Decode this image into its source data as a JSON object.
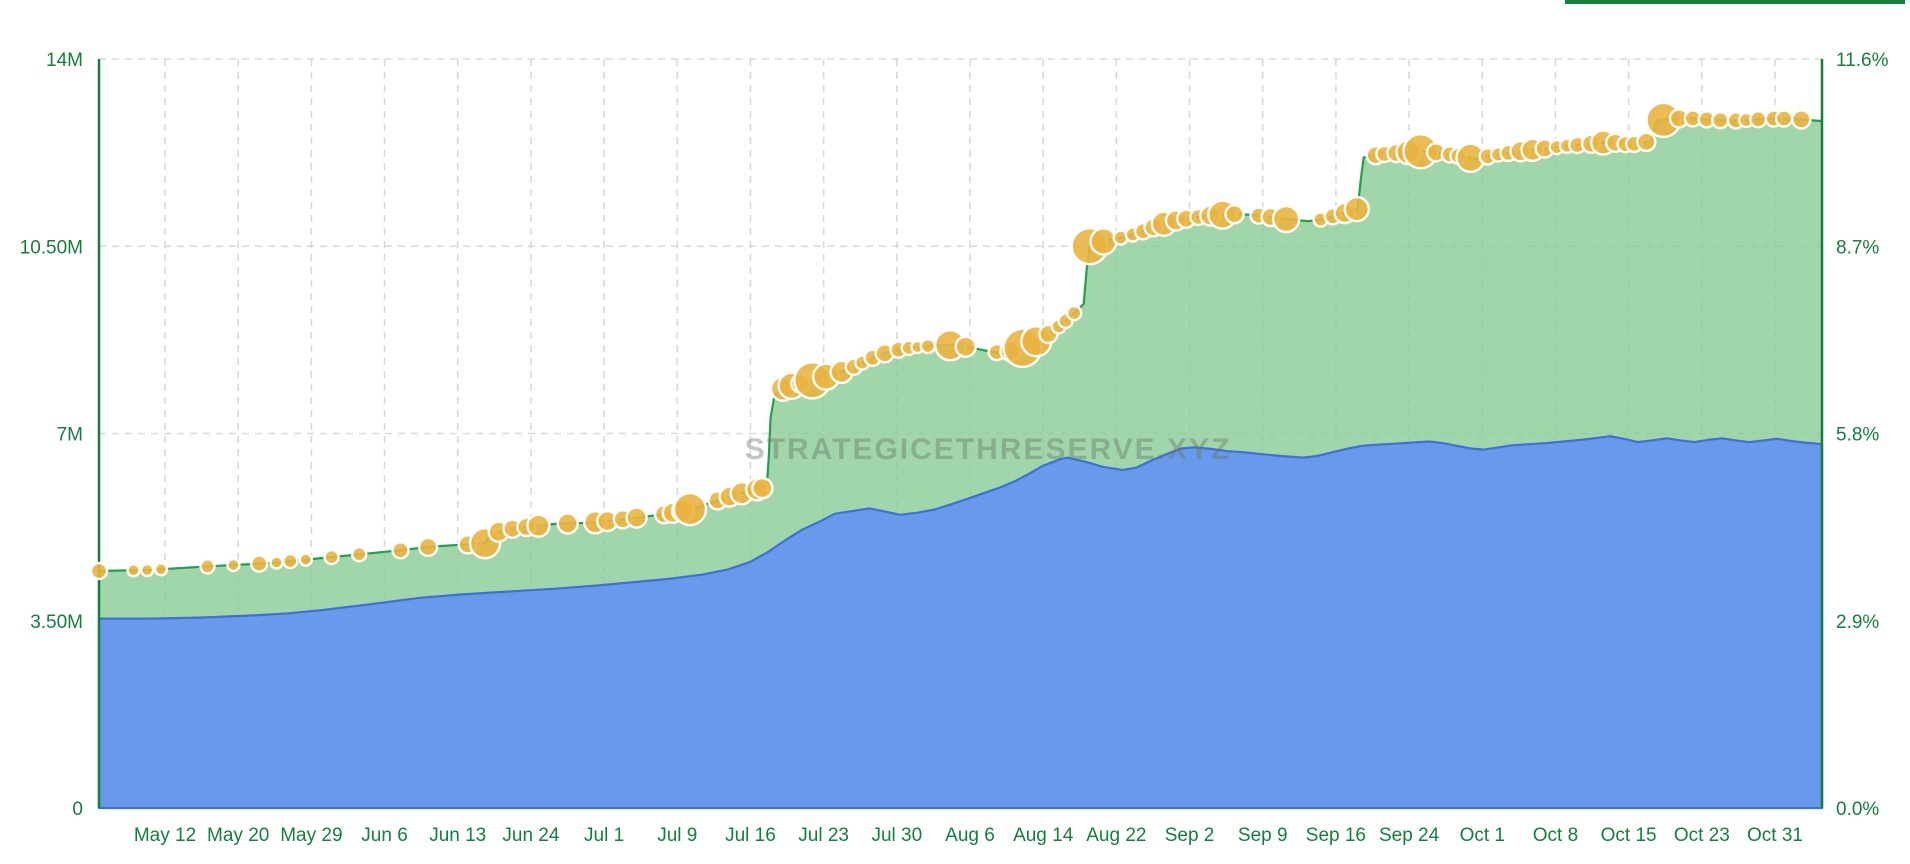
{
  "chart_data": {
    "type": "area",
    "title": "",
    "watermark": "STRATEGICETHRESERVE.XYZ",
    "legend": "none",
    "grid": true,
    "y_left": {
      "unit": "M ETH",
      "max": 14,
      "values": [
        0,
        3.5,
        7,
        10.5,
        14
      ],
      "ticks": [
        "0",
        "3.50M",
        "7M",
        "10.50M",
        "14M"
      ]
    },
    "y_right": {
      "unit": "% of supply",
      "max": 11.6,
      "values": [
        0,
        2.9,
        5.8,
        8.7,
        11.6
      ],
      "ticks": [
        "0.0%",
        "2.9%",
        "5.8%",
        "8.7%",
        "11.6%"
      ]
    },
    "x_labels": [
      "May 12",
      "May 20",
      "May 29",
      "Jun 6",
      "Jun 13",
      "Jun 24",
      "Jul 1",
      "Jul 9",
      "Jul 16",
      "Jul 23",
      "Jul 30",
      "Aug 6",
      "Aug 14",
      "Aug 22",
      "Sep 2",
      "Sep 9",
      "Sep 16",
      "Sep 24",
      "Oct 1",
      "Oct 8",
      "Oct 15",
      "Oct 23",
      "Oct 31"
    ],
    "series": [
      {
        "name": "total-eth-reserve-green",
        "axis": "left",
        "points": [
          [
            0.0,
            4.43
          ],
          [
            0.03,
            4.45
          ],
          [
            0.065,
            4.52
          ],
          [
            0.1,
            4.58
          ],
          [
            0.135,
            4.69
          ],
          [
            0.16,
            4.77
          ],
          [
            0.176,
            4.82
          ],
          [
            0.191,
            4.88
          ],
          [
            0.215,
            4.93
          ],
          [
            0.224,
            4.95
          ],
          [
            0.227,
            5.1
          ],
          [
            0.235,
            5.2
          ],
          [
            0.25,
            5.26
          ],
          [
            0.265,
            5.31
          ],
          [
            0.285,
            5.33
          ],
          [
            0.3,
            5.38
          ],
          [
            0.315,
            5.44
          ],
          [
            0.33,
            5.5
          ],
          [
            0.34,
            5.56
          ],
          [
            0.35,
            5.65
          ],
          [
            0.36,
            5.76
          ],
          [
            0.37,
            5.86
          ],
          [
            0.38,
            5.94
          ],
          [
            0.3875,
            6.0
          ],
          [
            0.3886,
            6.5
          ],
          [
            0.3898,
            7.3
          ],
          [
            0.3921,
            7.72
          ],
          [
            0.398,
            7.86
          ],
          [
            0.408,
            7.94
          ],
          [
            0.417,
            8.02
          ],
          [
            0.426,
            8.09
          ],
          [
            0.435,
            8.2
          ],
          [
            0.444,
            8.34
          ],
          [
            0.452,
            8.46
          ],
          [
            0.461,
            8.55
          ],
          [
            0.47,
            8.6
          ],
          [
            0.479,
            8.63
          ],
          [
            0.489,
            8.65
          ],
          [
            0.498,
            8.65
          ],
          [
            0.507,
            8.6
          ],
          [
            0.516,
            8.54
          ],
          [
            0.524,
            8.51
          ],
          [
            0.531,
            8.55
          ],
          [
            0.538,
            8.62
          ],
          [
            0.545,
            8.74
          ],
          [
            0.552,
            8.88
          ],
          [
            0.559,
            9.05
          ],
          [
            0.566,
            9.25
          ],
          [
            0.5715,
            9.42
          ],
          [
            0.5732,
            10.05
          ],
          [
            0.5749,
            10.5
          ],
          [
            0.58,
            10.57
          ],
          [
            0.589,
            10.63
          ],
          [
            0.598,
            10.7
          ],
          [
            0.606,
            10.78
          ],
          [
            0.614,
            10.88
          ],
          [
            0.623,
            10.97
          ],
          [
            0.632,
            11.02
          ],
          [
            0.641,
            11.06
          ],
          [
            0.65,
            11.09
          ],
          [
            0.658,
            11.1
          ],
          [
            0.668,
            11.09
          ],
          [
            0.677,
            11.06
          ],
          [
            0.686,
            11.02
          ],
          [
            0.694,
            10.99
          ],
          [
            0.702,
            10.97
          ],
          [
            0.709,
            11.0
          ],
          [
            0.716,
            11.06
          ],
          [
            0.723,
            11.12
          ],
          [
            0.7305,
            11.2
          ],
          [
            0.7323,
            11.75
          ],
          [
            0.734,
            12.16
          ],
          [
            0.744,
            12.22
          ],
          [
            0.752,
            12.24
          ],
          [
            0.76,
            12.26
          ],
          [
            0.768,
            12.28
          ],
          [
            0.777,
            12.25
          ],
          [
            0.785,
            12.21
          ],
          [
            0.792,
            12.17
          ],
          [
            0.799,
            12.14
          ],
          [
            0.806,
            12.18
          ],
          [
            0.813,
            12.22
          ],
          [
            0.821,
            12.26
          ],
          [
            0.829,
            12.29
          ],
          [
            0.837,
            12.32
          ],
          [
            0.845,
            12.35
          ],
          [
            0.853,
            12.38
          ],
          [
            0.861,
            12.4
          ],
          [
            0.87,
            12.43
          ],
          [
            0.877,
            12.45
          ],
          [
            0.883,
            12.42
          ],
          [
            0.888,
            12.4
          ],
          [
            0.895,
            12.43
          ],
          [
            0.901,
            12.47
          ],
          [
            0.9028,
            12.72
          ],
          [
            0.9045,
            12.85
          ],
          [
            0.913,
            12.88
          ],
          [
            0.921,
            12.9
          ],
          [
            0.929,
            12.88
          ],
          [
            0.938,
            12.86
          ],
          [
            0.948,
            12.85
          ],
          [
            0.957,
            12.86
          ],
          [
            0.966,
            12.88
          ],
          [
            0.976,
            12.89
          ],
          [
            0.985,
            12.88
          ],
          [
            0.992,
            12.86
          ],
          [
            1.0,
            12.84
          ]
        ]
      },
      {
        "name": "secondary-holdings-blue",
        "axis": "left",
        "points": [
          [
            0.0,
            3.54
          ],
          [
            0.03,
            3.54
          ],
          [
            0.06,
            3.56
          ],
          [
            0.09,
            3.6
          ],
          [
            0.11,
            3.64
          ],
          [
            0.13,
            3.7
          ],
          [
            0.15,
            3.78
          ],
          [
            0.17,
            3.86
          ],
          [
            0.187,
            3.93
          ],
          [
            0.21,
            3.99
          ],
          [
            0.24,
            4.05
          ],
          [
            0.265,
            4.1
          ],
          [
            0.29,
            4.16
          ],
          [
            0.31,
            4.22
          ],
          [
            0.33,
            4.28
          ],
          [
            0.35,
            4.36
          ],
          [
            0.365,
            4.46
          ],
          [
            0.378,
            4.6
          ],
          [
            0.388,
            4.78
          ],
          [
            0.398,
            5.0
          ],
          [
            0.408,
            5.2
          ],
          [
            0.418,
            5.35
          ],
          [
            0.427,
            5.5
          ],
          [
            0.437,
            5.55
          ],
          [
            0.447,
            5.6
          ],
          [
            0.455,
            5.55
          ],
          [
            0.465,
            5.48
          ],
          [
            0.475,
            5.52
          ],
          [
            0.485,
            5.58
          ],
          [
            0.495,
            5.68
          ],
          [
            0.504,
            5.78
          ],
          [
            0.513,
            5.88
          ],
          [
            0.522,
            5.98
          ],
          [
            0.531,
            6.1
          ],
          [
            0.54,
            6.25
          ],
          [
            0.548,
            6.4
          ],
          [
            0.558,
            6.52
          ],
          [
            0.562,
            6.55
          ],
          [
            0.573,
            6.47
          ],
          [
            0.582,
            6.38
          ],
          [
            0.594,
            6.32
          ],
          [
            0.602,
            6.36
          ],
          [
            0.611,
            6.5
          ],
          [
            0.62,
            6.62
          ],
          [
            0.628,
            6.72
          ],
          [
            0.636,
            6.74
          ],
          [
            0.646,
            6.71
          ],
          [
            0.655,
            6.67
          ],
          [
            0.664,
            6.65
          ],
          [
            0.673,
            6.62
          ],
          [
            0.682,
            6.59
          ],
          [
            0.69,
            6.57
          ],
          [
            0.699,
            6.55
          ],
          [
            0.707,
            6.58
          ],
          [
            0.716,
            6.65
          ],
          [
            0.725,
            6.72
          ],
          [
            0.733,
            6.77
          ],
          [
            0.742,
            6.79
          ],
          [
            0.752,
            6.81
          ],
          [
            0.762,
            6.83
          ],
          [
            0.772,
            6.85
          ],
          [
            0.78,
            6.82
          ],
          [
            0.788,
            6.77
          ],
          [
            0.796,
            6.72
          ],
          [
            0.804,
            6.7
          ],
          [
            0.812,
            6.74
          ],
          [
            0.82,
            6.78
          ],
          [
            0.83,
            6.8
          ],
          [
            0.84,
            6.82
          ],
          [
            0.85,
            6.85
          ],
          [
            0.86,
            6.88
          ],
          [
            0.87,
            6.92
          ],
          [
            0.877,
            6.95
          ],
          [
            0.885,
            6.9
          ],
          [
            0.893,
            6.84
          ],
          [
            0.901,
            6.87
          ],
          [
            0.91,
            6.91
          ],
          [
            0.918,
            6.87
          ],
          [
            0.926,
            6.84
          ],
          [
            0.934,
            6.88
          ],
          [
            0.942,
            6.91
          ],
          [
            0.95,
            6.87
          ],
          [
            0.958,
            6.84
          ],
          [
            0.966,
            6.87
          ],
          [
            0.974,
            6.9
          ],
          [
            0.982,
            6.86
          ],
          [
            0.99,
            6.83
          ],
          [
            1.0,
            6.8
          ]
        ]
      }
    ],
    "bubbles": {
      "name": "purchase-event-bubbles",
      "note": "markers ride on top of the green series; [x_fraction, radius_px]",
      "points": [
        [
          0.0,
          8
        ],
        [
          0.02,
          6
        ],
        [
          0.028,
          6
        ],
        [
          0.036,
          6
        ],
        [
          0.063,
          7
        ],
        [
          0.078,
          6
        ],
        [
          0.093,
          8
        ],
        [
          0.103,
          6
        ],
        [
          0.111,
          7
        ],
        [
          0.12,
          6
        ],
        [
          0.135,
          7
        ],
        [
          0.151,
          7
        ],
        [
          0.175,
          8
        ],
        [
          0.191,
          9
        ],
        [
          0.214,
          9
        ],
        [
          0.224,
          15
        ],
        [
          0.232,
          10
        ],
        [
          0.24,
          9
        ],
        [
          0.248,
          9
        ],
        [
          0.255,
          11
        ],
        [
          0.272,
          10
        ],
        [
          0.288,
          11
        ],
        [
          0.295,
          10
        ],
        [
          0.304,
          9
        ],
        [
          0.312,
          10
        ],
        [
          0.328,
          9
        ],
        [
          0.333,
          10
        ],
        [
          0.339,
          11
        ],
        [
          0.343,
          16
        ],
        [
          0.359,
          9
        ],
        [
          0.366,
          10
        ],
        [
          0.373,
          11
        ],
        [
          0.382,
          11
        ],
        [
          0.385,
          10
        ],
        [
          0.397,
          12
        ],
        [
          0.402,
          13
        ],
        [
          0.407,
          9
        ],
        [
          0.414,
          18
        ],
        [
          0.422,
          13
        ],
        [
          0.431,
          11
        ],
        [
          0.438,
          8
        ],
        [
          0.443,
          7
        ],
        [
          0.449,
          8
        ],
        [
          0.456,
          9
        ],
        [
          0.464,
          8
        ],
        [
          0.47,
          7
        ],
        [
          0.475,
          6
        ],
        [
          0.481,
          7
        ],
        [
          0.494,
          15
        ],
        [
          0.503,
          10
        ],
        [
          0.521,
          8
        ],
        [
          0.529,
          10
        ],
        [
          0.536,
          19
        ],
        [
          0.544,
          15
        ],
        [
          0.551,
          9
        ],
        [
          0.557,
          7
        ],
        [
          0.561,
          7
        ],
        [
          0.566,
          7
        ],
        [
          0.575,
          18
        ],
        [
          0.583,
          13
        ],
        [
          0.593,
          7
        ],
        [
          0.6,
          7
        ],
        [
          0.606,
          8
        ],
        [
          0.612,
          9
        ],
        [
          0.618,
          12
        ],
        [
          0.625,
          10
        ],
        [
          0.631,
          9
        ],
        [
          0.638,
          8
        ],
        [
          0.645,
          10
        ],
        [
          0.652,
          14
        ],
        [
          0.659,
          9
        ],
        [
          0.673,
          8
        ],
        [
          0.68,
          9
        ],
        [
          0.689,
          13
        ],
        [
          0.709,
          7
        ],
        [
          0.716,
          8
        ],
        [
          0.723,
          10
        ],
        [
          0.73,
          12
        ],
        [
          0.741,
          9
        ],
        [
          0.746,
          8
        ],
        [
          0.753,
          9
        ],
        [
          0.76,
          12
        ],
        [
          0.767,
          17
        ],
        [
          0.776,
          9
        ],
        [
          0.784,
          8
        ],
        [
          0.789,
          8
        ],
        [
          0.796,
          14
        ],
        [
          0.806,
          8
        ],
        [
          0.812,
          7
        ],
        [
          0.818,
          8
        ],
        [
          0.825,
          10
        ],
        [
          0.832,
          11
        ],
        [
          0.839,
          9
        ],
        [
          0.846,
          7
        ],
        [
          0.852,
          7
        ],
        [
          0.858,
          8
        ],
        [
          0.866,
          9
        ],
        [
          0.873,
          12
        ],
        [
          0.88,
          9
        ],
        [
          0.886,
          8
        ],
        [
          0.891,
          8
        ],
        [
          0.898,
          9
        ],
        [
          0.908,
          17
        ],
        [
          0.917,
          9
        ],
        [
          0.925,
          8
        ],
        [
          0.933,
          8
        ],
        [
          0.941,
          8
        ],
        [
          0.95,
          8
        ],
        [
          0.956,
          7
        ],
        [
          0.963,
          8
        ],
        [
          0.972,
          8
        ],
        [
          0.978,
          8
        ],
        [
          0.988,
          9
        ]
      ]
    }
  },
  "colors": {
    "axis_green": "#15803d",
    "label_green": "#15803d",
    "grid": "#d7dbd7",
    "green_line": "#21a04e",
    "green_fill": "rgba(135,203,148,0.78)",
    "blue_line": "#3f70d8",
    "blue_fill": "rgba(100,148,240,0.93)",
    "bubble_fill": "#eab440",
    "bubble_stroke": "#ffffff",
    "top_edge_fragment": "#15803d",
    "background": "#ffffff"
  }
}
